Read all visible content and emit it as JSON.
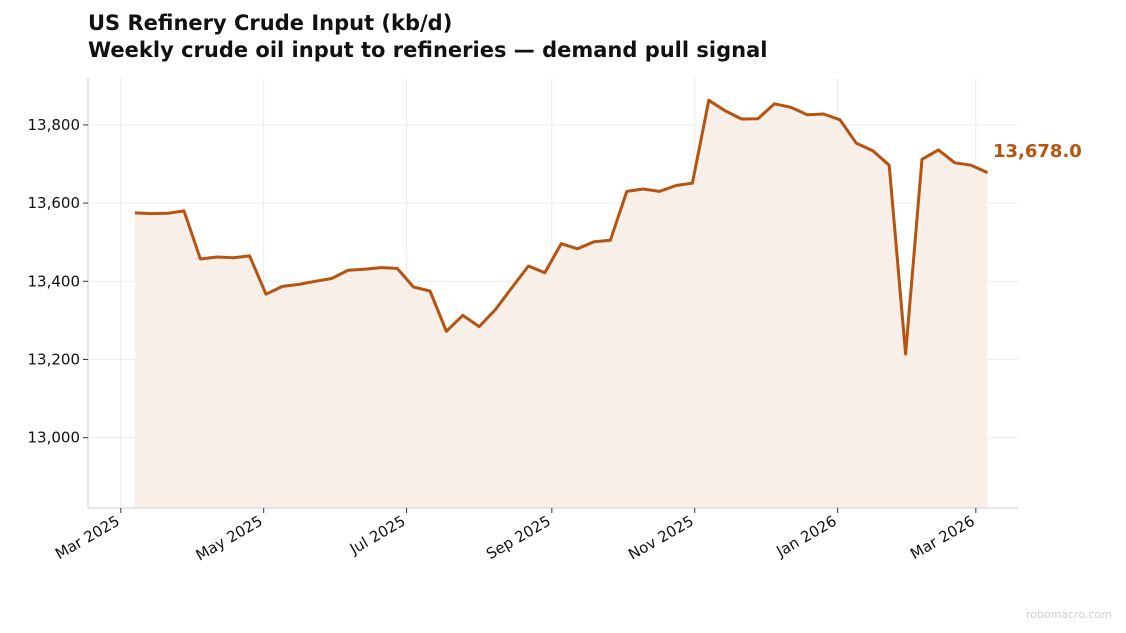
{
  "chart_data": {
    "type": "area",
    "title": "US Refinery Crude Input (kb/d)",
    "subtitle": "Weekly crude oil input to refineries — demand pull signal",
    "xlabel": "",
    "ylabel": "",
    "ylim": [
      12820,
      13920
    ],
    "xlim": [
      "2025-02-15",
      "2026-03-19"
    ],
    "y_ticks": [
      13000,
      13200,
      13400,
      13600,
      13800
    ],
    "y_tick_labels": [
      "13,000",
      "13,200",
      "13,400",
      "13,600",
      "13,800"
    ],
    "x_ticks": [
      "2025-03-01",
      "2025-05-01",
      "2025-07-01",
      "2025-09-01",
      "2025-11-01",
      "2026-01-01",
      "2026-03-01"
    ],
    "x_tick_labels": [
      "Mar 2025",
      "May 2025",
      "Jul 2025",
      "Sep 2025",
      "Nov 2025",
      "Jan 2026",
      "Mar 2026"
    ],
    "grid": true,
    "line_color": "#b5530f",
    "fill_color": "#f8efe9",
    "last_value_label": "13,678.0",
    "series": [
      {
        "x": [
          "2025-03-07",
          "2025-03-14",
          "2025-03-21",
          "2025-03-28",
          "2025-04-04",
          "2025-04-11",
          "2025-04-18",
          "2025-04-25",
          "2025-05-02",
          "2025-05-09",
          "2025-05-16",
          "2025-05-23",
          "2025-05-30",
          "2025-06-06",
          "2025-06-13",
          "2025-06-20",
          "2025-06-27",
          "2025-07-04",
          "2025-07-11",
          "2025-07-18",
          "2025-07-25",
          "2025-08-01",
          "2025-08-08",
          "2025-08-15",
          "2025-08-22",
          "2025-08-29",
          "2025-09-05",
          "2025-09-12",
          "2025-09-19",
          "2025-09-26",
          "2025-10-03",
          "2025-10-10",
          "2025-10-17",
          "2025-10-24",
          "2025-10-31",
          "2025-11-07",
          "2025-11-14",
          "2025-11-21",
          "2025-11-28",
          "2025-12-05",
          "2025-12-12",
          "2025-12-19",
          "2025-12-26",
          "2026-01-02",
          "2026-01-09",
          "2026-01-16",
          "2026-01-23",
          "2026-01-30",
          "2026-02-06",
          "2026-02-13",
          "2026-02-20",
          "2026-02-27",
          "2026-03-06"
        ],
        "values": [
          13575,
          13573,
          13574,
          13580,
          13457,
          13462,
          13460,
          13465,
          13367,
          13387,
          13392,
          13400,
          13407,
          13428,
          13431,
          13435,
          13433,
          13385,
          13375,
          13272,
          13313,
          13284,
          13328,
          13384,
          13439,
          13422,
          13496,
          13483,
          13501,
          13505,
          13630,
          13636,
          13630,
          13645,
          13651,
          13863,
          13836,
          13815,
          13816,
          13854,
          13845,
          13826,
          13828,
          13813,
          13753,
          13734,
          13697,
          13214,
          13712,
          13736,
          13703,
          13697,
          13678
        ]
      }
    ]
  },
  "watermark": "robomacro.com"
}
